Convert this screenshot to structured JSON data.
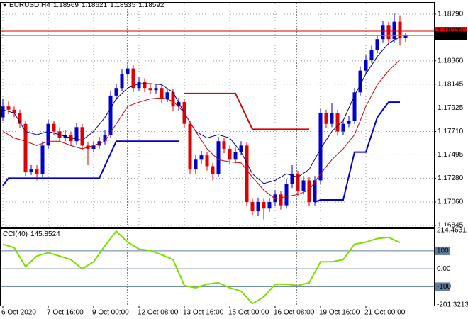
{
  "chart_data": {
    "type": "candlestick",
    "symbol": "EURUSD,H4",
    "bull_color": "#0000c8",
    "bear_color": "#e00000",
    "open": [
      1.1784,
      1.1794,
      1.1791,
      1.1788,
      1.1778,
      1.1734,
      1.1736,
      1.1732,
      1.1758,
      1.1778,
      1.1771,
      1.1765,
      1.1768,
      1.1762,
      1.1775,
      1.1758,
      1.1755,
      1.1758,
      1.1762,
      1.1768,
      1.1804,
      1.1811,
      1.1824,
      1.1829,
      1.1811,
      1.1817,
      1.1811,
      1.1809,
      1.1811,
      1.1801,
      1.1807,
      1.1794,
      1.1798,
      1.1778,
      1.1736,
      1.1745,
      1.1749,
      1.1739,
      1.1732,
      1.1762,
      1.1755,
      1.1745,
      1.1752,
      1.1758,
      1.1706,
      1.1698,
      1.1706,
      1.17,
      1.1706,
      1.1713,
      1.1703,
      1.1723,
      1.1732,
      1.1716,
      1.1726,
      1.1706,
      1.1726,
      1.1788,
      1.1778,
      1.1788,
      1.1771,
      1.1778,
      1.1781,
      1.1807,
      1.1827,
      1.1837,
      1.1846,
      1.1856,
      1.1869,
      1.1856,
      1.1872,
      1.18569
    ],
    "high": [
      1.1801,
      1.1799,
      1.1794,
      1.1791,
      1.1781,
      1.174,
      1.174,
      1.1762,
      1.1782,
      1.1781,
      1.1775,
      1.1772,
      1.1771,
      1.1779,
      1.1778,
      1.1761,
      1.1762,
      1.1766,
      1.1772,
      1.1808,
      1.1815,
      1.1828,
      1.1833,
      1.1832,
      1.1821,
      1.182,
      1.1815,
      1.1815,
      1.1814,
      1.1811,
      1.181,
      1.1802,
      1.1801,
      1.1781,
      1.1749,
      1.1753,
      1.1752,
      1.1742,
      1.1766,
      1.1765,
      1.1758,
      1.1756,
      1.1762,
      1.1761,
      1.1709,
      1.171,
      1.1709,
      1.171,
      1.1717,
      1.1716,
      1.1727,
      1.174,
      1.1735,
      1.173,
      1.1729,
      1.173,
      1.1792,
      1.1791,
      1.1797,
      1.1791,
      1.1782,
      1.1785,
      1.1811,
      1.1831,
      1.1841,
      1.185,
      1.186,
      1.1873,
      1.1872,
      1.188,
      1.1878,
      1.18621
    ],
    "low": [
      1.1781,
      1.1787,
      1.1784,
      1.1774,
      1.173,
      1.1731,
      1.1726,
      1.1729,
      1.1755,
      1.1768,
      1.1761,
      1.1762,
      1.1758,
      1.1759,
      1.1754,
      1.174,
      1.1752,
      1.1755,
      1.1759,
      1.1765,
      1.18,
      1.1808,
      1.182,
      1.1807,
      1.1808,
      1.1807,
      1.1805,
      1.1806,
      1.1797,
      1.1798,
      1.179,
      1.179,
      1.1774,
      1.1732,
      1.1732,
      1.1741,
      1.1735,
      1.1726,
      1.1729,
      1.1751,
      1.1741,
      1.1742,
      1.1749,
      1.1702,
      1.1694,
      1.1693,
      1.169,
      1.1697,
      1.1702,
      1.1699,
      1.17,
      1.1719,
      1.1712,
      1.1713,
      1.1702,
      1.1703,
      1.1723,
      1.1774,
      1.1775,
      1.1767,
      1.1768,
      1.1775,
      1.1778,
      1.1804,
      1.1824,
      1.1834,
      1.1843,
      1.1853,
      1.1852,
      1.1853,
      1.185,
      1.18535
    ],
    "close": [
      1.1794,
      1.1791,
      1.1788,
      1.1778,
      1.1734,
      1.1736,
      1.1732,
      1.1758,
      1.1778,
      1.1771,
      1.1765,
      1.1768,
      1.1762,
      1.1775,
      1.1758,
      1.1755,
      1.1758,
      1.1762,
      1.1768,
      1.1804,
      1.1811,
      1.1824,
      1.1829,
      1.1811,
      1.1817,
      1.1811,
      1.1809,
      1.1811,
      1.1801,
      1.1807,
      1.1794,
      1.1798,
      1.1778,
      1.1736,
      1.1745,
      1.1749,
      1.1739,
      1.1732,
      1.1762,
      1.1755,
      1.1745,
      1.1752,
      1.1758,
      1.1706,
      1.1698,
      1.1706,
      1.17,
      1.1706,
      1.1713,
      1.1703,
      1.1723,
      1.1732,
      1.1716,
      1.1726,
      1.1706,
      1.1726,
      1.1788,
      1.1778,
      1.1788,
      1.1771,
      1.1778,
      1.1781,
      1.1807,
      1.1827,
      1.1837,
      1.1846,
      1.1856,
      1.1869,
      1.1856,
      1.1872,
      1.1857,
      1.18592
    ],
    "ask": {
      "value": 1.18633,
      "color": "#e00000"
    },
    "ylim": [
      1.16845,
      1.18868
    ],
    "yticks": [
      {
        "value": 1.1879,
        "label": "1.18790"
      },
      {
        "value": 1.1836,
        "label": "1.18360"
      },
      {
        "value": 1.18145,
        "label": "1.18145"
      },
      {
        "value": 1.17925,
        "label": "1.17925"
      },
      {
        "value": 1.1771,
        "label": "1.17710"
      },
      {
        "value": 1.17495,
        "label": "1.17495"
      },
      {
        "value": 1.1728,
        "label": "1.17280"
      },
      {
        "value": 1.1706,
        "label": "1.17060"
      },
      {
        "value": 1.16845,
        "label": "1.16845"
      }
    ],
    "xticks": [
      {
        "value": 0,
        "label": "6 Oct 2020"
      },
      {
        "value": 8,
        "label": "7 Oct 16:00"
      },
      {
        "value": 16,
        "label": "9 Oct 00:00"
      },
      {
        "value": 24,
        "label": "12 Oct 08:00"
      },
      {
        "value": 32,
        "label": "13 Oct 16:00"
      },
      {
        "value": 40,
        "label": "15 Oct 00:00"
      },
      {
        "value": 48,
        "label": "16 Oct 08:00"
      },
      {
        "value": 56,
        "label": "19 Oct 16:00"
      },
      {
        "value": 64,
        "label": "21 Oct 00:00"
      }
    ],
    "grid": true,
    "overlays": [
      {
        "color": "#000080",
        "width": 1,
        "x": [
          0,
          2,
          4,
          6,
          8,
          10,
          12,
          14,
          16,
          18,
          20,
          22,
          24,
          26,
          28,
          30,
          32,
          34,
          36,
          38,
          40,
          42,
          44,
          46,
          48,
          50,
          52,
          54,
          56,
          58,
          60,
          62,
          64,
          66,
          68,
          70
        ],
        "values": [
          1.1791,
          1.1788,
          1.1771,
          1.1768,
          1.1771,
          1.1768,
          1.1765,
          1.1763,
          1.1771,
          1.1784,
          1.1801,
          1.1811,
          1.1815,
          1.1815,
          1.1814,
          1.1807,
          1.1788,
          1.1771,
          1.1765,
          1.1768,
          1.1765,
          1.1752,
          1.1732,
          1.1723,
          1.1726,
          1.1732,
          1.1729,
          1.1736,
          1.1755,
          1.1771,
          1.1781,
          1.1804,
          1.1824,
          1.184,
          1.1852,
          1.1858
        ]
      },
      {
        "color": "#cc0000",
        "width": 1,
        "x": [
          0,
          2,
          4,
          6,
          8,
          10,
          12,
          14,
          16,
          18,
          20,
          22,
          24,
          26,
          28,
          30,
          32,
          34,
          36,
          38,
          40,
          42,
          44,
          46,
          48,
          50,
          52,
          54,
          56,
          58,
          60,
          62,
          64,
          66,
          68,
          70
        ],
        "values": [
          1.1771,
          1.1765,
          1.1762,
          1.1758,
          1.1762,
          1.1762,
          1.1758,
          1.1755,
          1.1758,
          1.1762,
          1.1778,
          1.1794,
          1.1798,
          1.1801,
          1.1802,
          1.1799,
          1.1788,
          1.1771,
          1.1755,
          1.1745,
          1.1743,
          1.1742,
          1.1729,
          1.1717,
          1.1709,
          1.1711,
          1.1713,
          1.1717,
          1.1732,
          1.1745,
          1.1755,
          1.1768,
          1.1794,
          1.1814,
          1.1827,
          1.1837
        ]
      },
      {
        "color": "#0000cc",
        "width": 2,
        "x": [
          0,
          1,
          17,
          20,
          31,
          32,
          55,
          56,
          60,
          62,
          64,
          66,
          68,
          70
        ],
        "values": [
          1.1721,
          1.1728,
          1.1728,
          1.1762,
          1.1762,
          null,
          1.1706,
          1.1708,
          1.1708,
          1.1752,
          1.1752,
          1.1784,
          1.1798,
          1.1798
        ]
      },
      {
        "color": "#dd0000",
        "width": 2,
        "x": [
          32,
          41,
          44,
          54
        ],
        "values": [
          1.1806,
          1.1806,
          1.1773,
          1.1773
        ]
      }
    ],
    "cci": {
      "label": "CCI(40)",
      "color": "#7fdd00",
      "x": [
        0,
        2,
        4,
        6,
        8,
        10,
        12,
        14,
        16,
        18,
        20,
        22,
        24,
        26,
        28,
        30,
        32,
        34,
        36,
        38,
        40,
        42,
        44,
        46,
        48,
        50,
        52,
        54,
        56,
        58,
        60,
        62,
        64,
        66,
        68,
        70
      ],
      "values": [
        137,
        118,
        12,
        71,
        90,
        71,
        51,
        0,
        39,
        129,
        210,
        149,
        110,
        102,
        78,
        51,
        -94,
        -106,
        -86,
        -78,
        -106,
        -125,
        -195,
        -157,
        -86,
        -86,
        -94,
        -78,
        39,
        39,
        51,
        137,
        149,
        169,
        176,
        145.8524
      ],
      "ylim": [
        -201.3213,
        214.4631
      ],
      "yticks": [
        214.4631,
        100,
        {
          "value": 0,
          "label": "0.00"
        },
        -100,
        -201.3213
      ]
    }
  }
}
